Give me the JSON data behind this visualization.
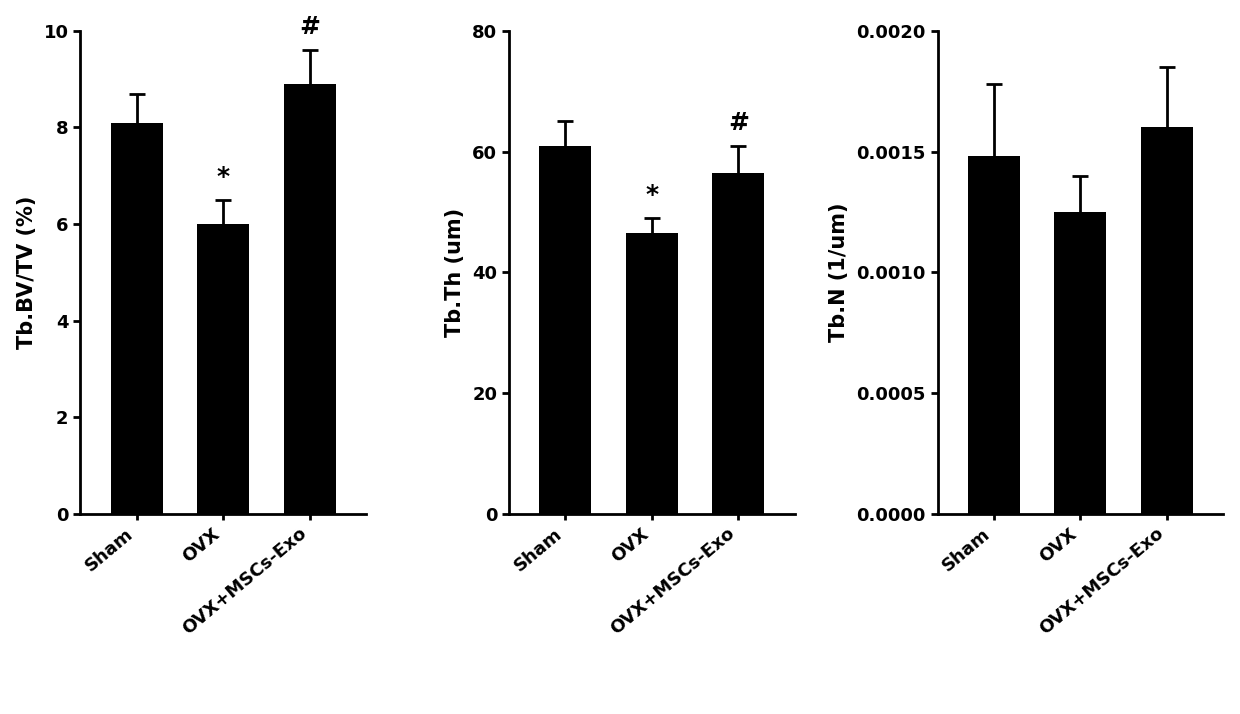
{
  "chart1": {
    "ylabel": "Tb.BV/TV (%)",
    "categories": [
      "Sham",
      "OVX",
      "OVX+MSCs-Exo"
    ],
    "values": [
      8.1,
      6.0,
      8.9
    ],
    "errors": [
      0.6,
      0.5,
      0.7
    ],
    "ylim": [
      0,
      10
    ],
    "yticks": [
      0,
      2,
      4,
      6,
      8,
      10
    ],
    "annotations": [
      "",
      "*",
      "#"
    ],
    "bar_color": "#000000",
    "error_color": "#000000"
  },
  "chart2": {
    "ylabel": "Tb.Th (um)",
    "categories": [
      "Sham",
      "OVX",
      "OVX+MSCs-Exo"
    ],
    "values": [
      61.0,
      46.5,
      56.5
    ],
    "errors": [
      4.0,
      2.5,
      4.5
    ],
    "ylim": [
      0,
      80
    ],
    "yticks": [
      0,
      20,
      40,
      60,
      80
    ],
    "annotations": [
      "",
      "*",
      "#"
    ],
    "bar_color": "#000000",
    "error_color": "#000000"
  },
  "chart3": {
    "ylabel": "Tb.N (1/um)",
    "categories": [
      "Sham",
      "OVX",
      "OVX+MSCs-Exo"
    ],
    "values": [
      0.00148,
      0.00125,
      0.0016
    ],
    "errors": [
      0.0003,
      0.00015,
      0.00025
    ],
    "ylim": [
      0.0,
      0.002
    ],
    "yticks": [
      0.0,
      0.0005,
      0.001,
      0.0015,
      0.002
    ],
    "annotations": [
      "",
      "",
      ""
    ],
    "bar_color": "#000000",
    "error_color": "#000000"
  },
  "background_color": "#ffffff",
  "tick_label_fontsize": 13,
  "axis_label_fontsize": 15,
  "annotation_fontsize": 18,
  "bar_width": 0.6
}
